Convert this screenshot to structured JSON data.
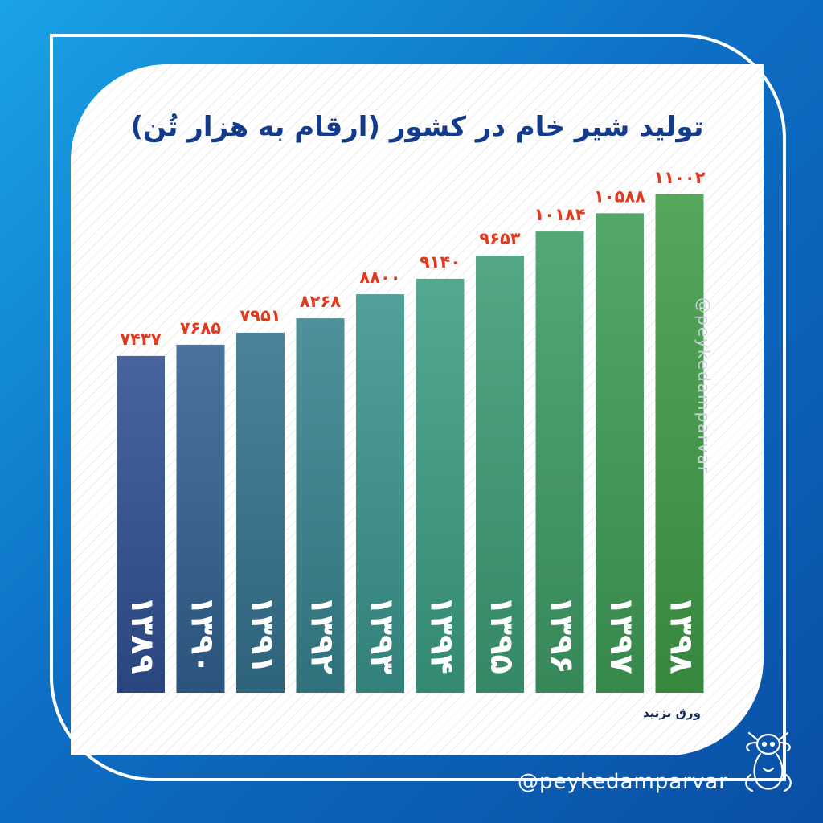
{
  "page": {
    "title": "تولید شیر خام در کشور (ارقام به هزار تُن)",
    "cta": "ورق بزنید",
    "handle": "@peykedamparvar",
    "watermark": "@peykedamparvar"
  },
  "chart_data": {
    "type": "bar",
    "title": "تولید شیر خام در کشور (ارقام به هزار تُن)",
    "categories": [
      "۱۳۸۹",
      "۱۳۹۰",
      "۱۳۹۱",
      "۱۳۹۲",
      "۱۳۹۳",
      "۱۳۹۴",
      "۱۳۹۵",
      "۱۳۹۶",
      "۱۳۹۷",
      "۱۳۹۸"
    ],
    "value_labels": [
      "۷۴۳۷",
      "۷۶۸۵",
      "۷۹۵۱",
      "۸۲۶۸",
      "۸۸۰۰",
      "۹۱۴۰",
      "۹۶۵۳",
      "۱۰۱۸۴",
      "۱۰۵۸۸",
      "۱۱۰۰۲"
    ],
    "values": [
      7437,
      7685,
      7951,
      8268,
      8800,
      9140,
      9653,
      10184,
      10588,
      11002
    ],
    "xlabel": "",
    "ylabel": "",
    "grid": false,
    "legend": "none",
    "colors": {
      "bar_start": "#2f4f8f",
      "bar_mid": "#3a9c8a",
      "bar_end": "#3f9a46",
      "value_text": "#e23a1e",
      "title_text": "#123b8c"
    }
  }
}
